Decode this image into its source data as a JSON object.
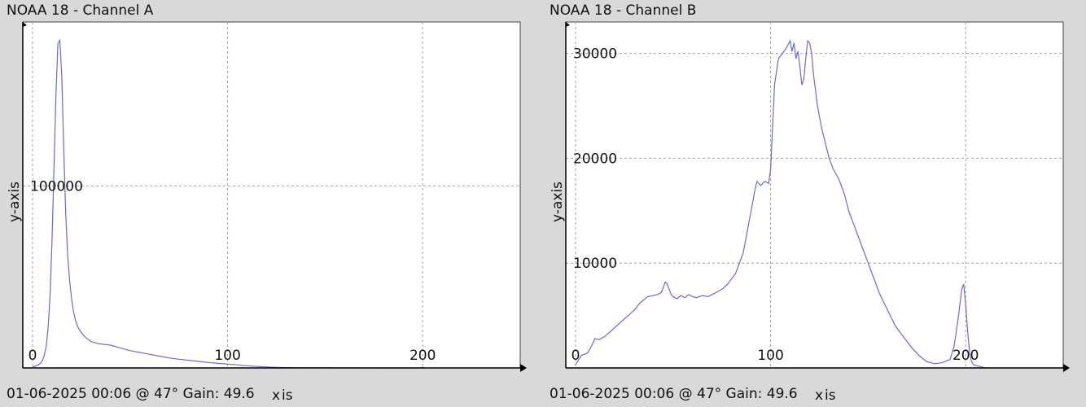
{
  "colors": {
    "background": "#d9d9d9",
    "plot_bg": "#ffffff",
    "line": "#6a6ad6",
    "grid": "#a0a0a0",
    "axis": "#000000"
  },
  "chart_data": [
    {
      "type": "line",
      "title": "NOAA 18 - Channel A",
      "footer": "01-06-2025 00:06 @ 47° Gain: 49.6",
      "xlabel": "x",
      "xlabel_suffix": "is",
      "ylabel": "y-axis",
      "xlim": [
        -5,
        250
      ],
      "ylim": [
        0,
        190000
      ],
      "xticks": [
        0,
        100,
        200
      ],
      "xtick_labels": [
        "0",
        "100",
        "200"
      ],
      "yticks": [
        100000
      ],
      "ytick_labels": [
        "100000"
      ],
      "grid": true,
      "series": [
        {
          "x": [
            0,
            2,
            4,
            5,
            6,
            7,
            8,
            9,
            10,
            11,
            12,
            13,
            14,
            15,
            16,
            17,
            18,
            19,
            20,
            21,
            22,
            23,
            24,
            26,
            28,
            30,
            33,
            36,
            40,
            45,
            50,
            55,
            60,
            65,
            70,
            75,
            80,
            85,
            90,
            95,
            100,
            105,
            110,
            115,
            120,
            125,
            130,
            135,
            140,
            199,
            200,
            201
          ],
          "values": [
            500,
            1200,
            2500,
            4000,
            7000,
            12000,
            22000,
            40000,
            70000,
            110000,
            150000,
            178000,
            180000,
            160000,
            120000,
            85000,
            62000,
            48000,
            38000,
            31000,
            26000,
            23000,
            21000,
            18000,
            16000,
            14500,
            13500,
            13000,
            12500,
            11000,
            9500,
            8500,
            7500,
            6500,
            5500,
            4800,
            4200,
            3600,
            3000,
            2500,
            2100,
            1700,
            1200,
            800,
            500,
            300,
            200,
            100,
            50,
            0,
            300,
            0
          ]
        }
      ]
    },
    {
      "type": "line",
      "title": "NOAA 18 - Channel B",
      "footer": "01-06-2025 00:06 @ 47° Gain: 49.6",
      "xlabel": "x",
      "xlabel_suffix": "is",
      "ylabel": "y-axis",
      "xlim": [
        -5,
        250
      ],
      "ylim": [
        0,
        33000
      ],
      "xticks": [
        0,
        100,
        200
      ],
      "xtick_labels": [
        "0",
        "100",
        "200"
      ],
      "yticks": [
        10000,
        20000,
        30000
      ],
      "ytick_labels": [
        "10000",
        "20000",
        "30000"
      ],
      "grid": true,
      "series": [
        {
          "x": [
            0,
            3,
            6,
            8,
            10,
            12,
            15,
            18,
            21,
            24,
            27,
            30,
            33,
            35,
            37,
            40,
            42,
            44,
            46,
            47,
            48,
            49,
            50,
            52,
            54,
            56,
            58,
            60,
            62,
            65,
            68,
            70,
            72,
            75,
            78,
            80,
            82,
            84,
            86,
            88,
            90,
            92,
            93,
            95,
            97,
            99,
            100,
            101,
            102,
            104,
            106,
            108,
            110,
            111,
            112,
            113,
            114,
            115,
            116,
            117,
            118,
            119,
            120,
            121,
            122,
            123,
            124,
            126,
            128,
            130,
            132,
            135,
            138,
            140,
            143,
            146,
            150,
            153,
            156,
            160,
            164,
            168,
            172,
            176,
            180,
            184,
            188,
            192,
            194,
            196,
            198,
            199,
            200,
            201,
            202,
            203,
            204,
            206,
            208,
            210,
            213
          ],
          "values": [
            300,
            1200,
            1400,
            2000,
            2800,
            2700,
            3000,
            3500,
            4000,
            4500,
            5000,
            5500,
            6200,
            6500,
            6800,
            6900,
            7000,
            7200,
            8200,
            8000,
            7500,
            7000,
            6800,
            6600,
            6900,
            6700,
            7000,
            6800,
            6700,
            6900,
            6800,
            7000,
            7200,
            7500,
            8000,
            8500,
            9000,
            10000,
            11000,
            13000,
            15000,
            17000,
            17800,
            17400,
            17800,
            17600,
            19000,
            23000,
            27000,
            29500,
            30000,
            30500,
            31200,
            30200,
            31000,
            29500,
            30200,
            28800,
            27000,
            27500,
            29500,
            31200,
            31000,
            30000,
            28000,
            26500,
            25000,
            23000,
            21500,
            20000,
            19000,
            18000,
            16500,
            15000,
            13500,
            12000,
            10000,
            8500,
            7000,
            5500,
            4000,
            3000,
            2000,
            1200,
            600,
            400,
            500,
            800,
            2000,
            4500,
            7500,
            8000,
            6000,
            3500,
            1500,
            600,
            300,
            200,
            100,
            0,
            0
          ]
        }
      ]
    }
  ]
}
